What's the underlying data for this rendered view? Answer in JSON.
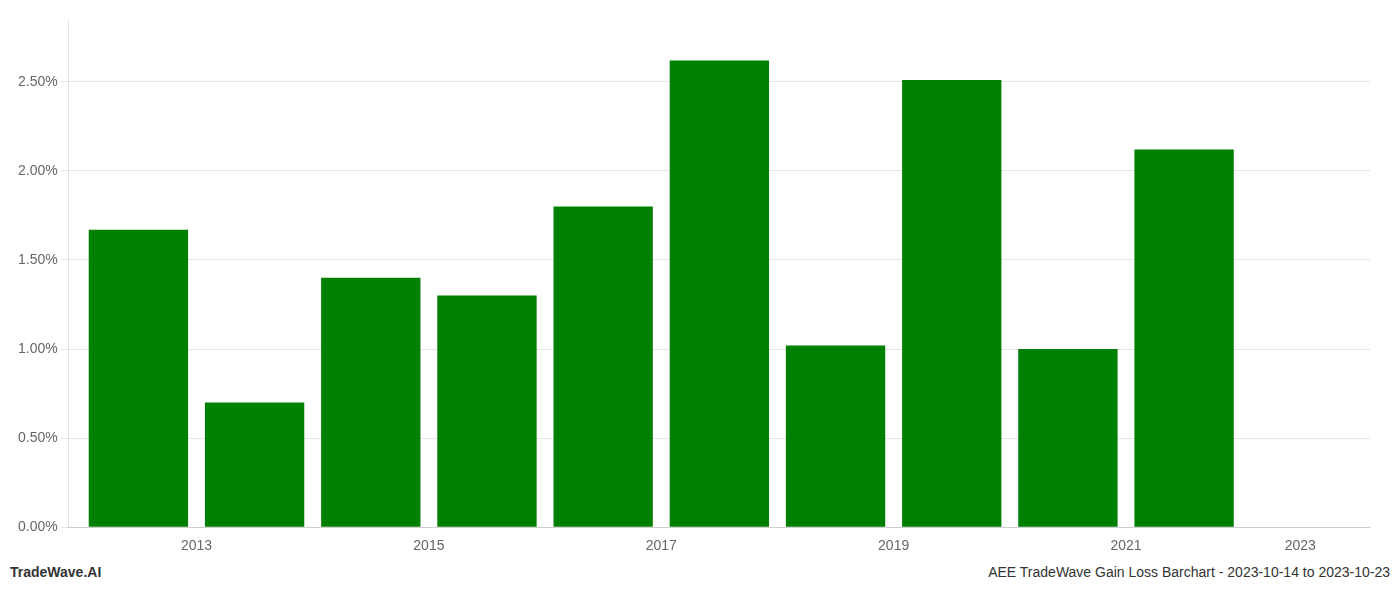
{
  "chart_data": {
    "type": "bar",
    "x": [
      2013,
      2014,
      2015,
      2016,
      2017,
      2018,
      2019,
      2020,
      2021,
      2022
    ],
    "values": [
      1.67,
      0.7,
      1.4,
      1.3,
      1.8,
      2.62,
      1.02,
      2.51,
      1.0,
      2.12
    ],
    "color": "#008000",
    "xlim": [
      2012.4,
      2023.6
    ],
    "xticks": [
      {
        "value": 2013.5,
        "label": "2013"
      },
      {
        "value": 2015.5,
        "label": "2015"
      },
      {
        "value": 2017.5,
        "label": "2017"
      },
      {
        "value": 2019.5,
        "label": "2019"
      },
      {
        "value": 2021.5,
        "label": "2021"
      },
      {
        "value": 2023.0,
        "label": "2023"
      }
    ],
    "ylim": [
      0,
      2.85
    ],
    "yticks": [
      {
        "value": 0.0,
        "label": "0.00%"
      },
      {
        "value": 0.5,
        "label": "0.50%"
      },
      {
        "value": 1.0,
        "label": "1.00%"
      },
      {
        "value": 1.5,
        "label": "1.50%"
      },
      {
        "value": 2.0,
        "label": "2.00%"
      },
      {
        "value": 2.5,
        "label": "2.50%"
      }
    ],
    "grid": "y",
    "annotations": [
      "TradeWave.AI",
      "AEE TradeWave Gain Loss Barchart - 2023-10-14 to 2023-10-23"
    ]
  }
}
